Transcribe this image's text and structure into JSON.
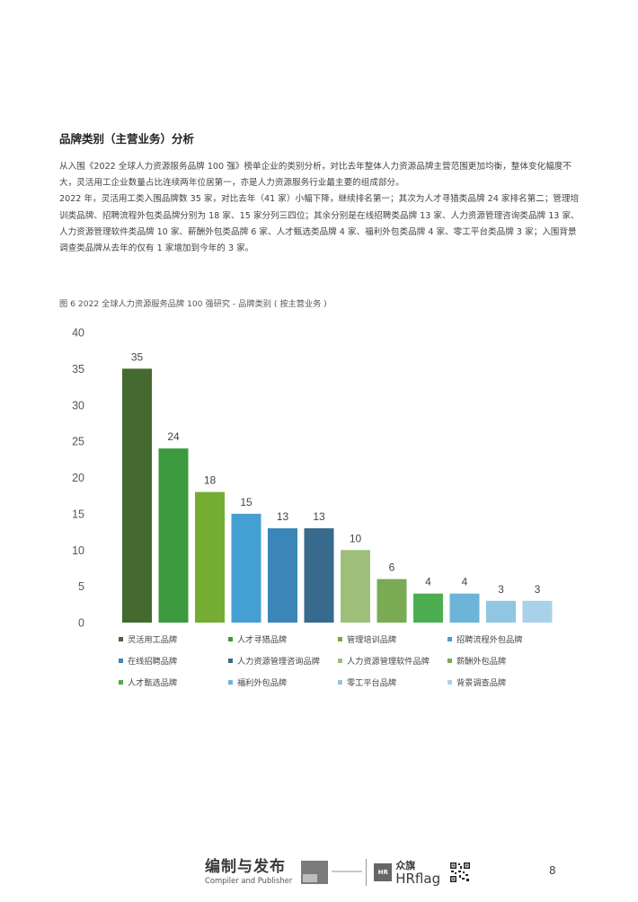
{
  "section_title": "品牌类别（主营业务）分析",
  "paragraphs": [
    "从入围《2022 全球人力资源服务品牌 100 强》榜单企业的类别分析，对比去年整体人力资源品牌主营范围更加均衡，整体变化幅度不大，灵活用工企业数量占比连续两年位居第一，亦是人力资源服务行业最主要的组成部分。",
    "2022 年，灵活用工类入围品牌数 35 家，对比去年（41 家）小幅下降，继续排名第一；其次为人才寻猎类品牌 24 家排名第二；管理培训类品牌、招聘流程外包类品牌分别为 18 家、15 家分列三四位；其余分别是在线招聘类品牌 13 家、人力资源管理咨询类品牌 13 家、人力资源管理软件类品牌 10 家、薪酬外包类品牌 6 家、人才甄选类品牌 4 家、福利外包类品牌 4 家、零工平台类品牌 3 家；入围背景调查类品牌从去年的仅有 1 家增加到今年的 3 家。"
  ],
  "figure_caption": "图 6 2022 全球人力资源服务品牌 100 强研究 - 品牌类别 ( 按主营业务 )",
  "chart_data": {
    "type": "bar",
    "title": "",
    "xlabel": "",
    "ylabel": "",
    "ylim": [
      0,
      40
    ],
    "yticks": [
      0,
      5,
      10,
      15,
      20,
      25,
      30,
      35,
      40
    ],
    "grid": false,
    "legend_placement": "bottom",
    "series": [
      {
        "name": "灵活用工品牌",
        "value": 35,
        "color": "#446a30"
      },
      {
        "name": "人才寻猎品牌",
        "value": 24,
        "color": "#3b9a3d"
      },
      {
        "name": "管理培训品牌",
        "value": 18,
        "color": "#74ad32"
      },
      {
        "name": "招聘流程外包品牌",
        "value": 15,
        "color": "#44a0d2"
      },
      {
        "name": "在线招聘品牌",
        "value": 13,
        "color": "#3b86b8"
      },
      {
        "name": "人力资源管理咨询品牌",
        "value": 13,
        "color": "#386a8e"
      },
      {
        "name": "人力资源管理软件品牌",
        "value": 10,
        "color": "#9dbf79"
      },
      {
        "name": "薪酬外包品牌",
        "value": 6,
        "color": "#7aaa54"
      },
      {
        "name": "人才甄选品牌",
        "value": 4,
        "color": "#4cae50"
      },
      {
        "name": "福利外包品牌",
        "value": 4,
        "color": "#6cb4d8"
      },
      {
        "name": "零工平台品牌",
        "value": 3,
        "color": "#91c6e2"
      },
      {
        "name": "背景调查品牌",
        "value": 3,
        "color": "#a9d1ea"
      }
    ]
  },
  "footer": {
    "compiler_cn": "编制与发布",
    "compiler_en": "Compiler and Publisher",
    "hr_badge": "HR",
    "hrflag_cn": "众旗",
    "hrflag_en": "HRflag"
  },
  "page_number": "8"
}
